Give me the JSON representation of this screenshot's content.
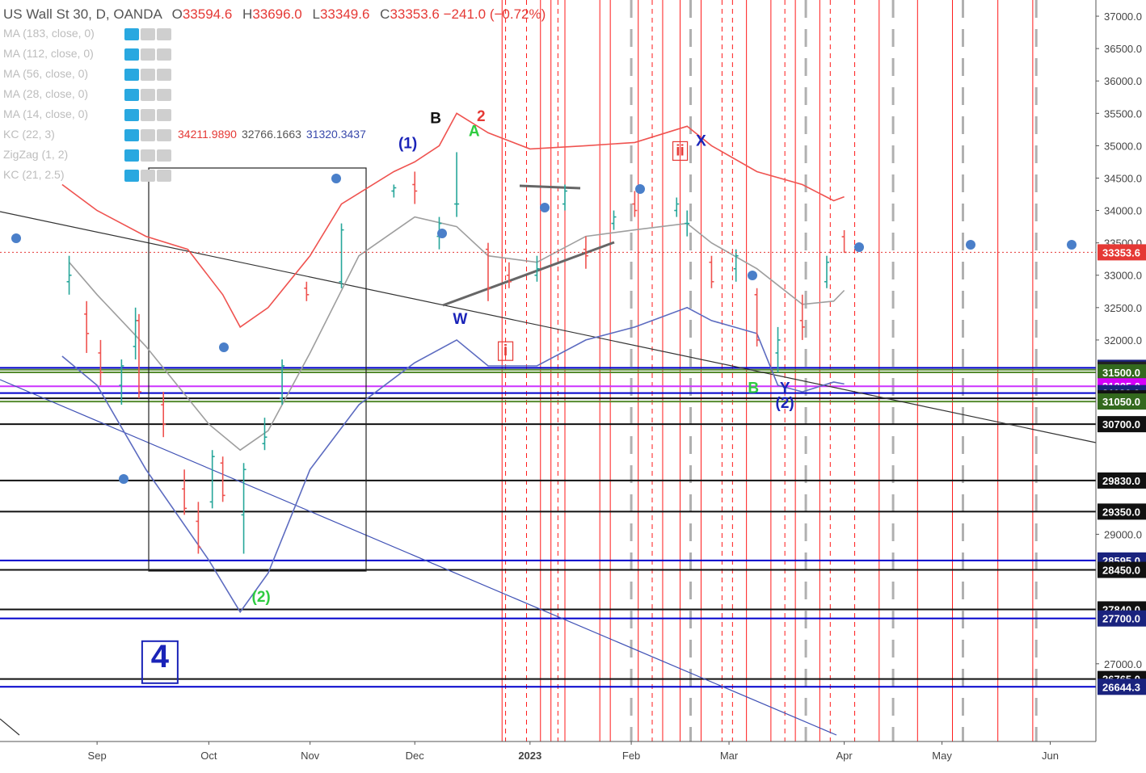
{
  "header": {
    "symbol": "US Wall St 30, D, OANDA",
    "open_label": "O",
    "open": "33594.6",
    "high_label": "H",
    "high": "33696.0",
    "low_label": "L",
    "low": "33349.6",
    "close_label": "C",
    "close": "33353.6",
    "change": "−241.0 (−0.72%)"
  },
  "indicators": [
    {
      "label": "MA (183, close, 0)"
    },
    {
      "label": "MA (112, close, 0)"
    },
    {
      "label": "MA (56, close, 0)"
    },
    {
      "label": "MA (28, close, 0)"
    },
    {
      "label": "MA (14, close, 0)"
    },
    {
      "label": "KC (22, 3)",
      "values": [
        "34211.9890",
        "32766.1663",
        "31320.3437"
      ],
      "colors": [
        "#e53935",
        "#555555",
        "#3949ab"
      ]
    },
    {
      "label": "ZigZag (1, 2)"
    },
    {
      "label": "KC (21, 2.5)"
    }
  ],
  "chart_data": {
    "type": "line",
    "title": "US Wall St 30, D, OANDA",
    "y_axis": {
      "min": 25800,
      "max": 37250,
      "position": "right",
      "ticks": [
        37000,
        36500,
        36000,
        35500,
        35000,
        34500,
        34000,
        33500,
        33000,
        32500,
        32000,
        29000,
        27000
      ]
    },
    "x_axis": {
      "labels": [
        {
          "label": "Sep",
          "date": "2022-09-01"
        },
        {
          "label": "Oct",
          "date": "2022-10-03"
        },
        {
          "label": "Nov",
          "date": "2022-11-01"
        },
        {
          "label": "Dec",
          "date": "2022-12-01"
        },
        {
          "label": "2023",
          "date": "2023-01-03"
        },
        {
          "label": "Feb",
          "date": "2023-02-01"
        },
        {
          "label": "Mar",
          "date": "2023-03-01"
        },
        {
          "label": "Apr",
          "date": "2023-04-03"
        },
        {
          "label": "May",
          "date": "2023-05-01"
        },
        {
          "label": "Jun",
          "date": "2023-06-01"
        }
      ]
    },
    "last_price": 33353.6,
    "last_price_color": "#e53935",
    "price_ohlc": [
      {
        "date": "2022-08-24",
        "open": 32900,
        "high": 33300,
        "low": 32700,
        "close": 33000
      },
      {
        "date": "2022-08-29",
        "open": 32400,
        "high": 32600,
        "low": 31800,
        "close": 32100
      },
      {
        "date": "2022-09-02",
        "open": 31800,
        "high": 32000,
        "low": 31300,
        "close": 31500
      },
      {
        "date": "2022-09-08",
        "open": 31300,
        "high": 31700,
        "low": 31000,
        "close": 31600
      },
      {
        "date": "2022-09-12",
        "open": 31900,
        "high": 32500,
        "low": 31700,
        "close": 32300
      },
      {
        "date": "2022-09-13",
        "open": 32300,
        "high": 32400,
        "low": 31100,
        "close": 31200
      },
      {
        "date": "2022-09-20",
        "open": 31000,
        "high": 31200,
        "low": 30500,
        "close": 30700
      },
      {
        "date": "2022-09-26",
        "open": 29700,
        "high": 30000,
        "low": 29300,
        "close": 29400
      },
      {
        "date": "2022-09-30",
        "open": 29200,
        "high": 29500,
        "low": 28700,
        "close": 28800
      },
      {
        "date": "2022-10-04",
        "open": 29500,
        "high": 30300,
        "low": 29400,
        "close": 30200
      },
      {
        "date": "2022-10-07",
        "open": 30100,
        "high": 30200,
        "low": 29500,
        "close": 29600
      },
      {
        "date": "2022-10-13",
        "open": 29300,
        "high": 30100,
        "low": 28700,
        "close": 30000
      },
      {
        "date": "2022-10-19",
        "open": 30400,
        "high": 30800,
        "low": 30300,
        "close": 30500
      },
      {
        "date": "2022-10-24",
        "open": 31100,
        "high": 31700,
        "low": 31000,
        "close": 31600
      },
      {
        "date": "2022-10-31",
        "open": 32800,
        "high": 32900,
        "low": 32600,
        "close": 32700
      },
      {
        "date": "2022-11-10",
        "open": 32900,
        "high": 33800,
        "low": 32800,
        "close": 33700
      },
      {
        "date": "2022-11-25",
        "open": 34300,
        "high": 34400,
        "low": 34200,
        "close": 34350
      },
      {
        "date": "2022-12-01",
        "open": 34400,
        "high": 34600,
        "low": 34100,
        "close": 34300
      },
      {
        "date": "2022-12-08",
        "open": 33600,
        "high": 33900,
        "low": 33400,
        "close": 33800
      },
      {
        "date": "2022-12-13",
        "open": 34100,
        "high": 34900,
        "low": 33900,
        "close": 34100
      },
      {
        "date": "2022-12-22",
        "open": 33400,
        "high": 33500,
        "low": 32600,
        "close": 32800
      },
      {
        "date": "2022-12-28",
        "open": 33000,
        "high": 33200,
        "low": 32800,
        "close": 32900
      },
      {
        "date": "2023-01-05",
        "open": 33000,
        "high": 33300,
        "low": 32900,
        "close": 33100
      },
      {
        "date": "2023-01-13",
        "open": 34100,
        "high": 34400,
        "low": 34000,
        "close": 34300
      },
      {
        "date": "2023-01-19",
        "open": 33400,
        "high": 33600,
        "low": 33100,
        "close": 33300
      },
      {
        "date": "2023-01-27",
        "open": 33800,
        "high": 34000,
        "low": 33700,
        "close": 33900
      },
      {
        "date": "2023-02-02",
        "open": 34100,
        "high": 34300,
        "low": 33900,
        "close": 34000
      },
      {
        "date": "2023-02-14",
        "open": 34000,
        "high": 34200,
        "low": 33900,
        "close": 34100
      },
      {
        "date": "2023-02-17",
        "open": 33800,
        "high": 34000,
        "low": 33600,
        "close": 33800
      },
      {
        "date": "2023-02-24",
        "open": 33200,
        "high": 33300,
        "low": 32800,
        "close": 32900
      },
      {
        "date": "2023-03-03",
        "open": 33100,
        "high": 33400,
        "low": 32900,
        "close": 33300
      },
      {
        "date": "2023-03-09",
        "open": 32700,
        "high": 32800,
        "low": 31900,
        "close": 32000
      },
      {
        "date": "2023-03-15",
        "open": 31800,
        "high": 32200,
        "low": 31500,
        "close": 32000
      },
      {
        "date": "2023-03-22",
        "open": 32300,
        "high": 32700,
        "low": 32000,
        "close": 32200
      },
      {
        "date": "2023-03-29",
        "open": 32900,
        "high": 33300,
        "low": 32800,
        "close": 33200
      },
      {
        "date": "2023-04-03",
        "open": 33594.6,
        "high": 33696.0,
        "low": 33349.6,
        "close": 33353.6
      }
    ],
    "series": [
      {
        "name": "KC (22, 3)",
        "color": "#ef5350",
        "points": [
          [
            "2022-08-22",
            34400
          ],
          [
            "2022-09-01",
            34000
          ],
          [
            "2022-09-15",
            33600
          ],
          [
            "2022-09-27",
            33400
          ],
          [
            "2022-10-07",
            32700
          ],
          [
            "2022-10-12",
            32200
          ],
          [
            "2022-10-20",
            32500
          ],
          [
            "2022-11-01",
            33300
          ],
          [
            "2022-11-10",
            34100
          ],
          [
            "2022-11-25",
            34600
          ],
          [
            "2022-12-01",
            34750
          ],
          [
            "2022-12-08",
            35000
          ],
          [
            "2022-12-13",
            35500
          ],
          [
            "2022-12-22",
            35200
          ],
          [
            "2023-01-03",
            34950
          ],
          [
            "2023-01-19",
            35000
          ],
          [
            "2023-02-02",
            35050
          ],
          [
            "2023-02-17",
            35300
          ],
          [
            "2023-02-24",
            35000
          ],
          [
            "2023-03-09",
            34600
          ],
          [
            "2023-03-22",
            34400
          ],
          [
            "2023-03-31",
            34150
          ],
          [
            "2023-04-03",
            34211.989
          ]
        ]
      },
      {
        "name": "KC (22, 3)",
        "color": "#9e9e9e",
        "points": [
          [
            "2022-08-24",
            33200
          ],
          [
            "2022-09-01",
            32700
          ],
          [
            "2022-09-15",
            31900
          ],
          [
            "2022-10-03",
            30700
          ],
          [
            "2022-10-12",
            30300
          ],
          [
            "2022-10-20",
            30600
          ],
          [
            "2022-11-01",
            31800
          ],
          [
            "2022-11-15",
            33300
          ],
          [
            "2022-12-01",
            33900
          ],
          [
            "2022-12-13",
            33750
          ],
          [
            "2022-12-22",
            33300
          ],
          [
            "2023-01-05",
            33200
          ],
          [
            "2023-01-19",
            33600
          ],
          [
            "2023-02-02",
            33700
          ],
          [
            "2023-02-17",
            33800
          ],
          [
            "2023-02-24",
            33500
          ],
          [
            "2023-03-09",
            33100
          ],
          [
            "2023-03-22",
            32550
          ],
          [
            "2023-03-31",
            32600
          ],
          [
            "2023-04-03",
            32766.1663
          ]
        ]
      },
      {
        "name": "KC (22, 3)",
        "color": "#5c6bc0",
        "points": [
          [
            "2022-08-22",
            31750
          ],
          [
            "2022-09-01",
            31300
          ],
          [
            "2022-09-15",
            30000
          ],
          [
            "2022-10-03",
            28600
          ],
          [
            "2022-10-12",
            27800
          ],
          [
            "2022-10-20",
            28400
          ],
          [
            "2022-11-01",
            30000
          ],
          [
            "2022-11-15",
            31000
          ],
          [
            "2022-12-01",
            31650
          ],
          [
            "2022-12-13",
            32000
          ],
          [
            "2022-12-22",
            31600
          ],
          [
            "2023-01-05",
            31600
          ],
          [
            "2023-01-19",
            32000
          ],
          [
            "2023-02-02",
            32200
          ],
          [
            "2023-02-17",
            32500
          ],
          [
            "2023-02-24",
            32300
          ],
          [
            "2023-03-09",
            32100
          ],
          [
            "2023-03-15",
            31300
          ],
          [
            "2023-03-22",
            31200
          ],
          [
            "2023-03-31",
            31350
          ],
          [
            "2023-04-03",
            31320.3437
          ]
        ]
      }
    ],
    "price_levels": [
      {
        "value": 31570.0,
        "label": "31570.0",
        "line_color": "#0000cc",
        "tag_color": "#1a237e"
      },
      {
        "value": 31540.0,
        "label": "31540.0",
        "line_color": "#558b2f",
        "tag_color": "#222222"
      },
      {
        "value": 31500.0,
        "label": "31500.0",
        "line_color": "#558b2f",
        "tag_color": "#33691e"
      },
      {
        "value": 31285.0,
        "label": "31285.0",
        "line_color": "#cc33ff",
        "tag_color": "#d500f9"
      },
      {
        "value": 31180.0,
        "label": "31180.0",
        "line_color": "#0000cc",
        "tag_color": "#1a237e"
      },
      {
        "value": 31100.0,
        "label": "31100.0",
        "line_color": "#111111",
        "tag_color": "#111111"
      },
      {
        "value": 31050.0,
        "label": "31050.0",
        "line_color": "#558b2f",
        "tag_color": "#33691e"
      },
      {
        "value": 30700.0,
        "label": "30700.0",
        "line_color": "#111111",
        "tag_color": "#111111"
      },
      {
        "value": 29830.0,
        "label": "29830.0",
        "line_color": "#111111",
        "tag_color": "#111111"
      },
      {
        "value": 29350.0,
        "label": "29350.0",
        "line_color": "#111111",
        "tag_color": "#111111"
      },
      {
        "value": 28595.0,
        "label": "28595.0",
        "line_color": "#0000cc",
        "tag_color": "#1a237e"
      },
      {
        "value": 28450.0,
        "label": "28450.0",
        "line_color": "#111111",
        "tag_color": "#111111"
      },
      {
        "value": 27840.0,
        "label": "27840.0",
        "line_color": "#111111",
        "tag_color": "#111111"
      },
      {
        "value": 27700.0,
        "label": "27700.0",
        "line_color": "#0000cc",
        "tag_color": "#1a237e"
      },
      {
        "value": 26765.0,
        "label": "26765.0",
        "line_color": "#111111",
        "tag_color": "#111111"
      },
      {
        "value": 26644.3,
        "label": "26644.3",
        "line_color": "#0000cc",
        "tag_color": "#1a237e"
      }
    ],
    "annotations": [
      {
        "text": "B",
        "date": "2022-12-07",
        "price": 35350,
        "color": "#111111"
      },
      {
        "text": "2",
        "date": "2022-12-20",
        "price": 35380,
        "color": "#e53935"
      },
      {
        "text": "A",
        "date": "2022-12-18",
        "price": 35150,
        "color": "#2ecc40"
      },
      {
        "text": "(1)",
        "date": "2022-11-29",
        "price": 34960,
        "color": "#1a23b8"
      },
      {
        "text": "X",
        "date": "2023-02-21",
        "price": 35000,
        "color": "#1a23b8"
      },
      {
        "text": "W",
        "date": "2022-12-14",
        "price": 32250,
        "color": "#1a23b8"
      },
      {
        "text": "B",
        "date": "2023-03-08",
        "price": 31180,
        "color": "#2ecc40"
      },
      {
        "text": "Y",
        "date": "2023-03-17",
        "price": 31180,
        "color": "#1a23b8"
      },
      {
        "text": "(2)",
        "date": "2023-03-17",
        "price": 30950,
        "color": "#1a23b8"
      },
      {
        "text": "(2)",
        "date": "2022-10-18",
        "price": 27960,
        "color": "#2ecc40"
      },
      {
        "text": "4",
        "date": "2022-09-19",
        "price": 26950,
        "color": "#1a23b8"
      },
      {
        "text": "ii",
        "date": "2023-02-15",
        "price": 34850,
        "color": "#e53935"
      },
      {
        "text": "i",
        "date": "2022-12-27",
        "price": 31760,
        "color": "#e53935"
      }
    ],
    "grid": false,
    "legend": "top-left"
  }
}
